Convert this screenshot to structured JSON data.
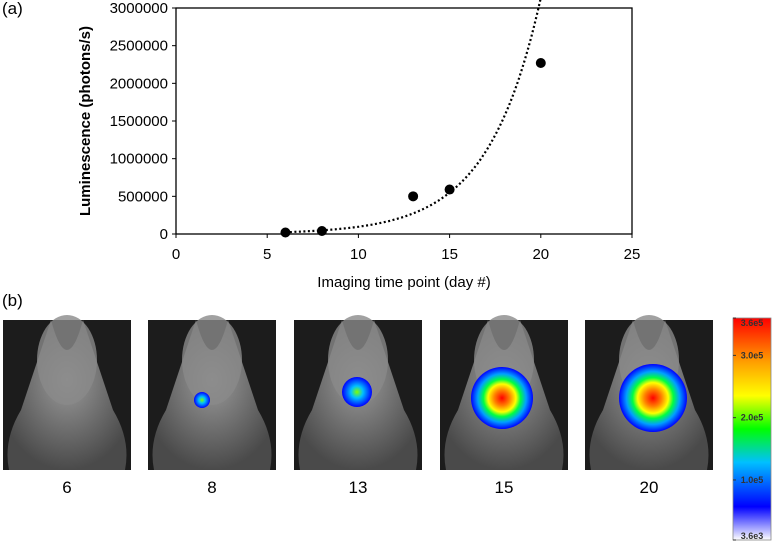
{
  "panel_labels": [
    "(a)",
    "(b)"
  ],
  "chart_data": {
    "type": "scatter",
    "x": [
      6,
      8,
      13,
      15,
      20
    ],
    "values": [
      20000,
      40000,
      500000,
      590000,
      2270000
    ],
    "color": "#000000",
    "trendline": "exponential",
    "xlabel": "Imaging time point (day #)",
    "ylabel": "Luminescence (photons/s)",
    "xlim": [
      0,
      25
    ],
    "xticks": [
      0,
      5,
      10,
      15,
      20,
      25
    ],
    "ylim": [
      0,
      3000000
    ],
    "yticks": [
      0,
      500000,
      1000000,
      1500000,
      2000000,
      2500000,
      3000000
    ]
  },
  "images": {
    "labels": [
      "6",
      "8",
      "13",
      "15",
      "20"
    ],
    "colorbar": {
      "lim": [
        3600,
        360000
      ],
      "ticks": [
        {
          "value": 360000,
          "label": "3.6e5"
        },
        {
          "value": 300000,
          "label": "3.0e5"
        },
        {
          "value": 200000,
          "label": "2.0e5"
        },
        {
          "value": 100000,
          "label": "1.0e5"
        },
        {
          "value": 3600,
          "label": "3.6e3"
        }
      ]
    }
  }
}
